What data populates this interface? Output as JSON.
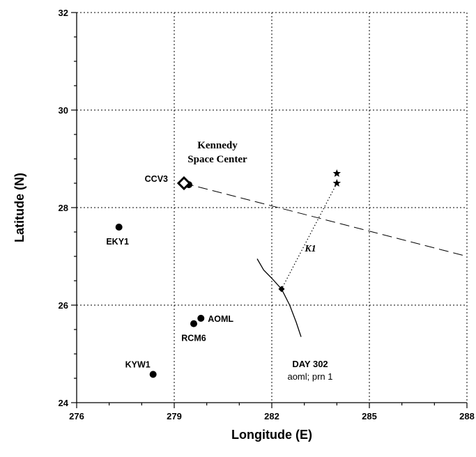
{
  "chart_data": {
    "type": "scatter",
    "title": "",
    "xlabel": "Longitude (E)",
    "ylabel": "Latitude (N)",
    "xlim": [
      276,
      288
    ],
    "ylim": [
      24,
      32
    ],
    "xticks": [
      "276",
      "279",
      "282",
      "285",
      "288"
    ],
    "yticks": [
      "24",
      "26",
      "28",
      "30",
      "32"
    ],
    "grid": true,
    "stations": [
      {
        "name": "CCV3",
        "x": 279.45,
        "y": 28.47
      },
      {
        "name": "EKY1",
        "x": 277.3,
        "y": 27.6
      },
      {
        "name": "RCM6",
        "x": 279.6,
        "y": 25.62
      },
      {
        "name": "AOML",
        "x": 279.82,
        "y": 25.73
      },
      {
        "name": "KYW1",
        "x": 278.35,
        "y": 24.58
      }
    ],
    "diamond_marker": {
      "x": 279.3,
      "y": 28.5
    },
    "center_label_lines": [
      "Kennedy",
      "Space Center"
    ],
    "dashed_line": [
      {
        "x": 279.3,
        "y": 28.5
      },
      {
        "x": 288.0,
        "y": 27.0
      }
    ],
    "stars": [
      {
        "x": 284.0,
        "y": 28.7
      },
      {
        "x": 284.0,
        "y": 28.5
      }
    ],
    "dotted_line": [
      {
        "x": 284.0,
        "y": 28.5
      },
      {
        "x": 282.3,
        "y": 26.33
      }
    ],
    "dotted_line_label": "K1",
    "track": [
      {
        "x": 281.55,
        "y": 26.95
      },
      {
        "x": 281.75,
        "y": 26.72
      },
      {
        "x": 282.0,
        "y": 26.55
      },
      {
        "x": 282.3,
        "y": 26.33
      },
      {
        "x": 282.55,
        "y": 26.0
      },
      {
        "x": 282.75,
        "y": 25.65
      },
      {
        "x": 282.9,
        "y": 25.35
      }
    ],
    "track_point": {
      "x": 282.3,
      "y": 26.33
    },
    "track_label_lines": [
      "DAY 302",
      "aoml; prn 1"
    ]
  }
}
